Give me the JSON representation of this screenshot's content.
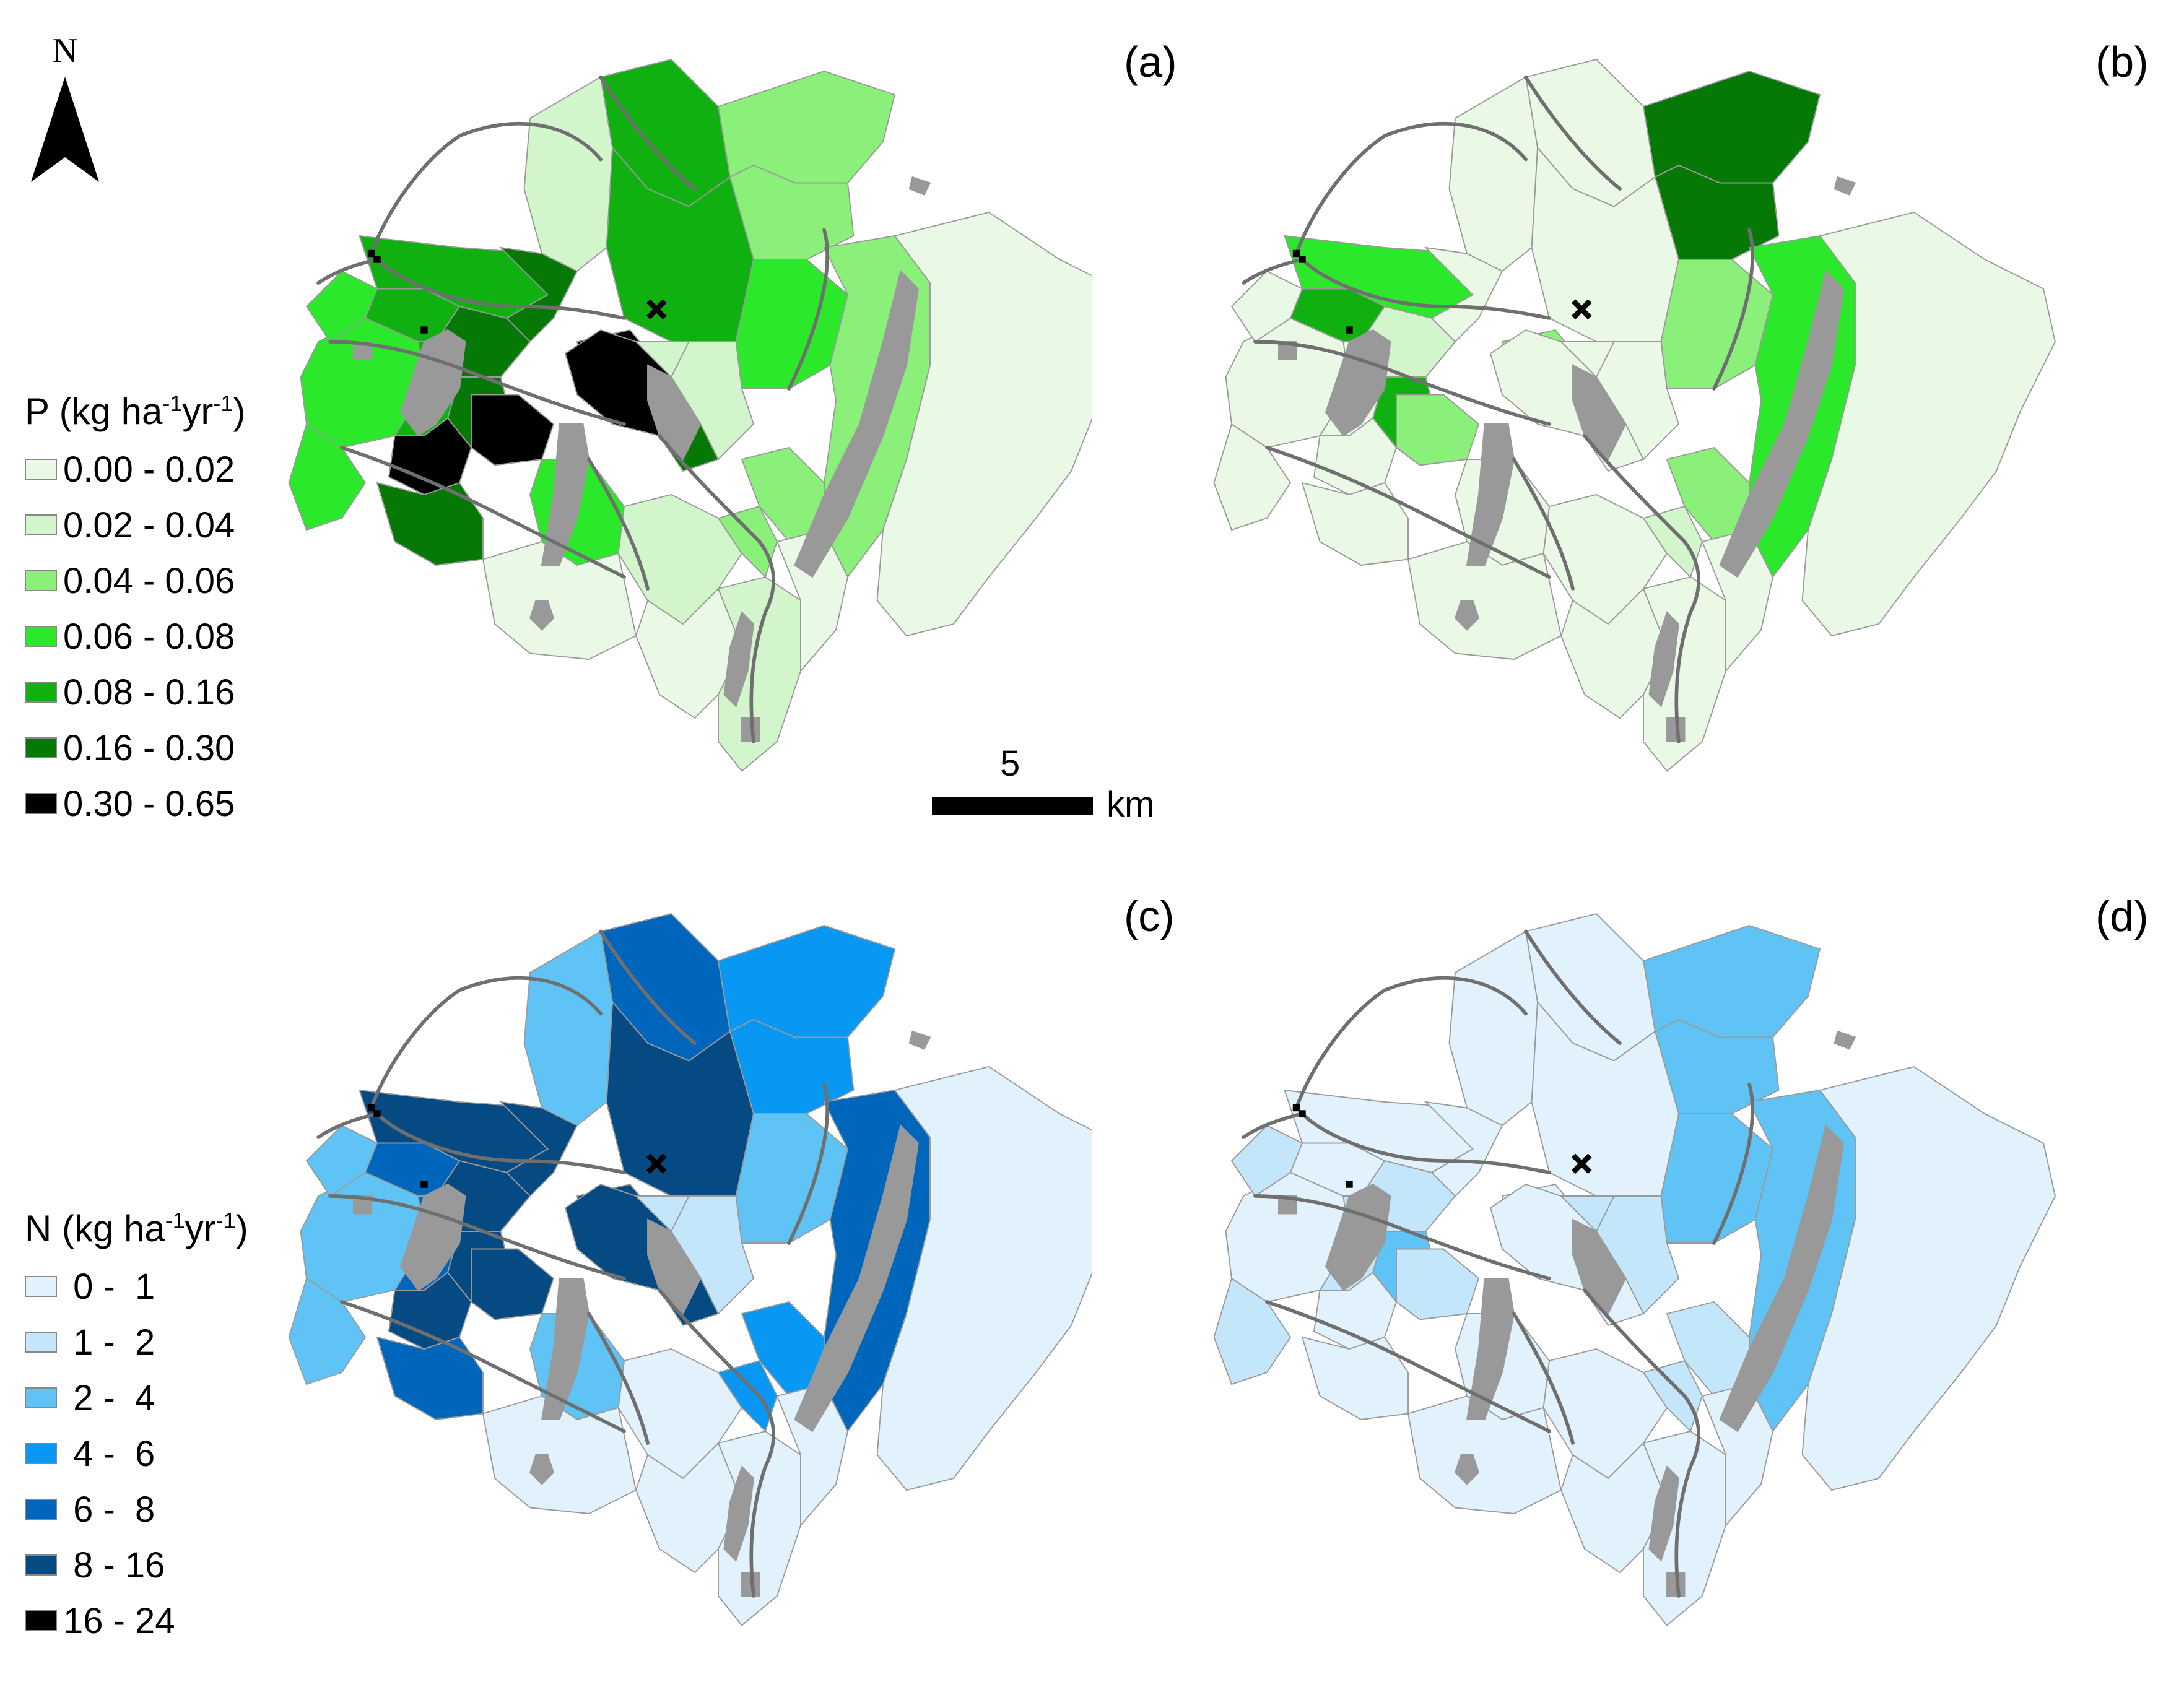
{
  "panels": [
    {
      "id": "a",
      "label": "(a)",
      "kind": "P",
      "fills": [
        "#eaf9e6",
        "#d2f5cc",
        "#8af07a",
        "#2be82b",
        "#0fb00f",
        "#067806",
        "#000000"
      ],
      "zone_class": [
        3,
        3,
        4,
        5,
        4,
        5,
        4,
        5,
        6,
        6,
        6,
        4,
        4,
        6,
        5,
        5,
        3,
        1,
        2,
        2,
        3,
        1,
        1,
        1,
        2,
        0,
        1,
        2,
        3,
        0,
        0,
        2
      ]
    },
    {
      "id": "b",
      "label": "(b)",
      "kind": "P",
      "fills": [
        "#eaf9e6",
        "#d2f5cc",
        "#8af07a",
        "#2be82b",
        "#0fb00f",
        "#067806",
        "#000000"
      ],
      "zone_class": [
        0,
        0,
        3,
        1,
        4,
        4,
        0,
        0,
        2,
        2,
        0,
        0,
        0,
        0,
        0,
        0,
        0,
        0,
        5,
        5,
        2,
        0,
        0,
        0,
        1,
        0,
        0,
        2,
        0,
        0,
        0,
        3
      ]
    },
    {
      "id": "c",
      "label": "(c)",
      "kind": "N",
      "fills": [
        "#e2f2fc",
        "#c4e6fb",
        "#5fc4f5",
        "#0897f2",
        "#0066bb",
        "#054a82",
        "#000000"
      ],
      "zone_class": [
        2,
        2,
        5,
        5,
        4,
        5,
        4,
        5,
        5,
        5,
        5,
        4,
        5,
        5,
        5,
        4,
        2,
        2,
        3,
        3,
        2,
        1,
        1,
        0,
        3,
        0,
        0,
        3,
        2,
        0,
        0,
        4
      ]
    },
    {
      "id": "d",
      "label": "(d)",
      "kind": "N",
      "fills": [
        "#e2f2fc",
        "#c4e6fb",
        "#5fc4f5",
        "#0897f2",
        "#0066bb",
        "#054a82",
        "#000000"
      ],
      "zone_class": [
        0,
        1,
        0,
        1,
        0,
        2,
        1,
        0,
        0,
        1,
        0,
        0,
        0,
        0,
        0,
        0,
        1,
        0,
        2,
        2,
        2,
        1,
        1,
        0,
        1,
        0,
        0,
        1,
        0,
        0,
        0,
        2
      ]
    }
  ],
  "legend_p": {
    "title_main": "P (kg ha",
    "title_exp1": "-1",
    "title_mid": "yr",
    "title_exp2": "-1",
    "title_end": ")",
    "entries": [
      {
        "label": "0.00 - 0.02",
        "color": "#eaf9e6"
      },
      {
        "label": "0.02 - 0.04",
        "color": "#d2f5cc"
      },
      {
        "label": "0.04 - 0.06",
        "color": "#8af07a"
      },
      {
        "label": "0.06 - 0.08",
        "color": "#2be82b"
      },
      {
        "label": "0.08 - 0.16",
        "color": "#0fb00f"
      },
      {
        "label": "0.16 - 0.30",
        "color": "#067806"
      },
      {
        "label": "0.30 - 0.65",
        "color": "#000000"
      }
    ]
  },
  "legend_n": {
    "title_main": "N (kg ha",
    "title_exp1": "-1",
    "title_mid": "yr",
    "title_exp2": "-1",
    "title_end": ")",
    "entries": [
      {
        "label": " 0 -  1",
        "color": "#e2f2fc"
      },
      {
        "label": " 1 -  2",
        "color": "#c4e6fb"
      },
      {
        "label": " 2 -  4",
        "color": "#5fc4f5"
      },
      {
        "label": " 4 -  6",
        "color": "#0897f2"
      },
      {
        "label": " 6 -  8",
        "color": "#0066bb"
      },
      {
        "label": " 8 - 16",
        "color": "#054a82"
      },
      {
        "label": "16 - 24",
        "color": "#000000"
      }
    ]
  },
  "north_arrow": {
    "letter": "N",
    "icon": "north-arrow-icon"
  },
  "scale_bar": {
    "value": "5",
    "unit": "km"
  },
  "colors": {
    "lake": "#999999",
    "river": "#6f6f6f",
    "boundary": "#9a9a9a"
  },
  "point_marker": {
    "icon": "x-cross-icon"
  }
}
